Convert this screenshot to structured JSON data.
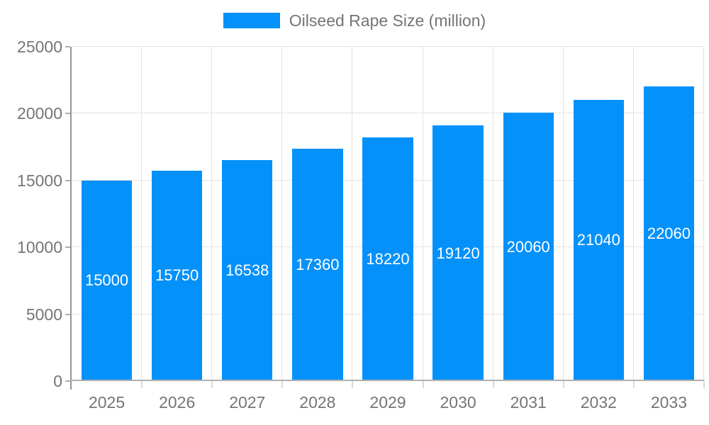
{
  "chart_data": {
    "type": "bar",
    "title": "",
    "legend": "Oilseed Rape Size (million)",
    "legend_position": "top",
    "categories": [
      "2025",
      "2026",
      "2027",
      "2028",
      "2029",
      "2030",
      "2031",
      "2032",
      "2033"
    ],
    "values": [
      15000,
      15750,
      16538,
      17360,
      18220,
      19120,
      20060,
      21040,
      22060
    ],
    "data_labels": "inside-center",
    "xlabel": "",
    "ylabel": "",
    "ylim": [
      0,
      25000
    ],
    "y_ticks": [
      0,
      5000,
      10000,
      15000,
      20000,
      25000
    ],
    "grid": true,
    "colors": {
      "bar": "#0591fa",
      "bar_label": "#ffffff",
      "axis_text": "#757575",
      "legend_text": "#757575",
      "gridline": "#e3e3e3",
      "baseline": "#b0b0b0",
      "axis_line": "#949494"
    }
  }
}
